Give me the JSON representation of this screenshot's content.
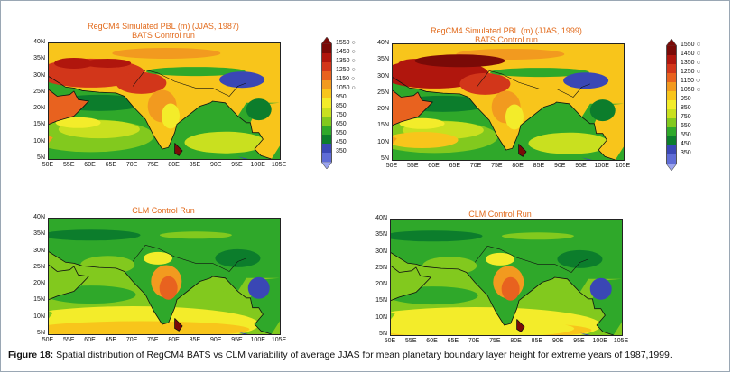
{
  "panels": [
    {
      "id": "p1",
      "title1": "RegCM4 Simulated PBL (m)  (JJAS, 1987)",
      "title2": "BATS Control run",
      "scheme": "bats87"
    },
    {
      "id": "p2",
      "title1": "RegCM4 Simulated PBL (m)  (JJAS, 1999)",
      "title2": "BATS Control run",
      "scheme": "bats99"
    },
    {
      "id": "p3",
      "title1": "CLM Control Run",
      "title2": "",
      "scheme": "clm87"
    },
    {
      "id": "p4",
      "title1": "CLM Control Run",
      "title2": "",
      "scheme": "clm99"
    }
  ],
  "y_ticks": [
    "40N",
    "35N",
    "30N",
    "25N",
    "20N",
    "15N",
    "10N",
    "5N"
  ],
  "x_ticks": [
    "50E",
    "55E",
    "60E",
    "65E",
    "70E",
    "75E",
    "80E",
    "85E",
    "90E",
    "95E",
    "100E",
    "105E"
  ],
  "colorbar": {
    "labels": [
      "1550",
      "1450",
      "1350",
      "1250",
      "1150",
      "1050",
      "950",
      "850",
      "750",
      "650",
      "550",
      "450",
      "350"
    ],
    "colors": [
      "#7a0a07",
      "#b0160d",
      "#d2361a",
      "#e8621f",
      "#f29a1f",
      "#f8c51b",
      "#f3ec2a",
      "#c9e01f",
      "#82c91e",
      "#2fa82a",
      "#0c7d2c",
      "#3a47b5",
      "#5f6cd6",
      "#9aa3ee"
    ]
  },
  "caption": {
    "label": "Figure 18:",
    "text": " Spatial distribution of RegCM4 BATS vs CLM variability of average JJAS for mean planetary boundary layer height for extreme years of 1987,1999."
  }
}
